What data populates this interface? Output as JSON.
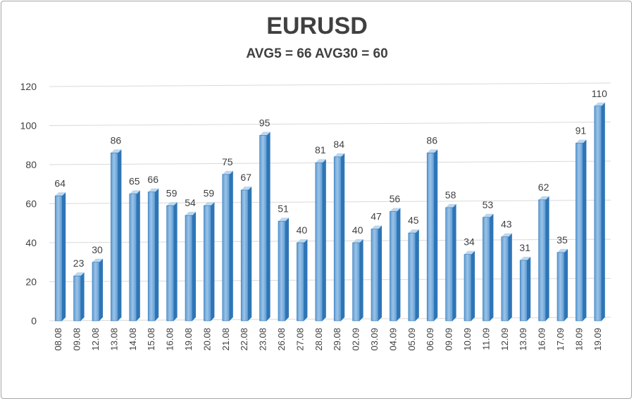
{
  "chart_data": {
    "type": "bar",
    "title": "EURUSD",
    "subtitle": "AVG5 = 66 AVG30 = 60",
    "categories": [
      "08.08",
      "09.08",
      "12.08",
      "13.08",
      "14.08",
      "15.08",
      "16.08",
      "19.08",
      "20.08",
      "21.08",
      "22.08",
      "23.08",
      "26.08",
      "27.08",
      "28.08",
      "29.08",
      "02.09",
      "03.09",
      "04.09",
      "05.09",
      "06.09",
      "09.09",
      "10.09",
      "11.09",
      "12.09",
      "13.09",
      "16.09",
      "17.09",
      "18.09",
      "19.09"
    ],
    "values": [
      64,
      23,
      30,
      86,
      65,
      66,
      59,
      54,
      59,
      75,
      67,
      95,
      51,
      40,
      81,
      84,
      40,
      47,
      56,
      45,
      86,
      58,
      34,
      53,
      43,
      31,
      62,
      35,
      91,
      110
    ],
    "yticks": [
      0,
      20,
      40,
      60,
      80,
      100,
      120
    ],
    "ylim": [
      0,
      120
    ],
    "grid": true,
    "legend": "none",
    "colors": {
      "bar_front": "#5b9bd5",
      "bar_highlight": "#9dc3e6",
      "bar_side": "#2e75b6",
      "bar_top": "#bdd7ee",
      "grid": "#d9d9d9",
      "text": "#404040"
    }
  }
}
